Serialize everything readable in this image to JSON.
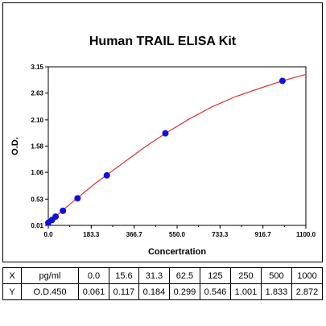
{
  "chart_data": {
    "type": "scatter",
    "title": "Human TRAIL ELISA Kit",
    "xlabel": "Concertration",
    "ylabel": "O.D.",
    "x_ticks": [
      "0.0",
      "183.3",
      "366.7",
      "550.0",
      "733.3",
      "916.7",
      "1100.0"
    ],
    "y_ticks": [
      "0.01",
      "0.53",
      "1.06",
      "1.58",
      "2.10",
      "2.63",
      "3.15"
    ],
    "xlim": [
      0,
      1100
    ],
    "ylim": [
      0.01,
      3.15
    ],
    "grid": false,
    "point_color": "#1010e0",
    "curve_color": "#e03030",
    "x": [
      0.0,
      15.6,
      31.3,
      62.5,
      125,
      250,
      500,
      1000
    ],
    "y": [
      0.061,
      0.117,
      0.184,
      0.299,
      0.546,
      1.001,
      1.833,
      2.872
    ],
    "fit_curve": {
      "x": [
        0,
        100,
        200,
        300,
        400,
        500,
        600,
        700,
        800,
        900,
        1000,
        1100
      ],
      "y": [
        0.061,
        0.46,
        0.84,
        1.18,
        1.52,
        1.833,
        2.11,
        2.36,
        2.56,
        2.72,
        2.872,
        3.0
      ]
    }
  },
  "table": {
    "rows": [
      {
        "label": "X",
        "unit": "pg/ml",
        "values": [
          "0.0",
          "15.6",
          "31.3",
          "62.5",
          "125",
          "250",
          "500",
          "1000"
        ]
      },
      {
        "label": "Y",
        "unit": "O.D.450",
        "values": [
          "0.061",
          "0.117",
          "0.184",
          "0.299",
          "0.546",
          "1.001",
          "1.833",
          "2.872"
        ]
      }
    ]
  }
}
